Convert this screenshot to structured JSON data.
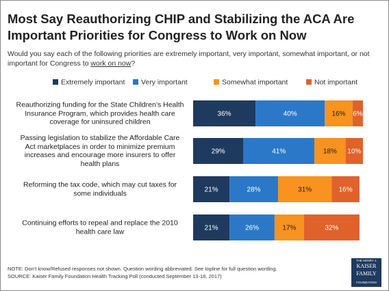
{
  "chart_data": {
    "type": "stacked-bar",
    "title": [
      "Most Say Reauthorizing CHIP and Stabilizing the ACA Are",
      "Important Priorities for Congress to Work on Now"
    ],
    "subtitle": [
      "Would you say each of the following priorities are extremely important, very important, somewhat important, or not",
      "important for Congress to ",
      "work on now",
      "?"
    ],
    "categories": [
      "Reauthorizing funding for the State Children’s Health Insurance Program, which provides health care coverage for uninsured children",
      "Passing legislation to stabilize the Affordable Care Act marketplaces in order to minimize premium increases and encourage more insurers to offer health plans",
      "Reforming the tax code, which may cut taxes for some individuals",
      "Continuing efforts to repeal and replace the 2010 health care law"
    ],
    "series": [
      {
        "name": "Extremely important",
        "color": "#1f3a5f",
        "values": [
          36,
          29,
          21,
          21
        ],
        "value_labels": [
          "36%",
          "29%",
          "21%",
          "21%"
        ]
      },
      {
        "name": "Very important",
        "color": "#2b78c8",
        "values": [
          40,
          41,
          28,
          26
        ],
        "value_labels": [
          "40%",
          "41%",
          "28%",
          "26%"
        ]
      },
      {
        "name": "Somewhat important",
        "color": "#f7931e",
        "values": [
          16,
          18,
          31,
          17
        ],
        "value_labels": [
          "16%",
          "18%",
          "31%",
          "17%"
        ]
      },
      {
        "name": "Not important",
        "color": "#e0622a",
        "values": [
          6,
          10,
          16,
          32
        ],
        "value_labels": [
          "6%",
          "10%",
          "16%",
          "32%"
        ]
      }
    ],
    "xlim": [
      0,
      100
    ],
    "notes": [
      "NOTE: Don't know/Refused responses not shown. Question wording abbreviated. See topline for full question wording.",
      "SOURCE: Kaiser Family Foundation Health Tracking Poll (conducted September 13-18, 2017)"
    ],
    "logo": [
      "THE HENRY J.",
      "KAISER",
      "FAMILY",
      "FOUNDATION"
    ]
  }
}
